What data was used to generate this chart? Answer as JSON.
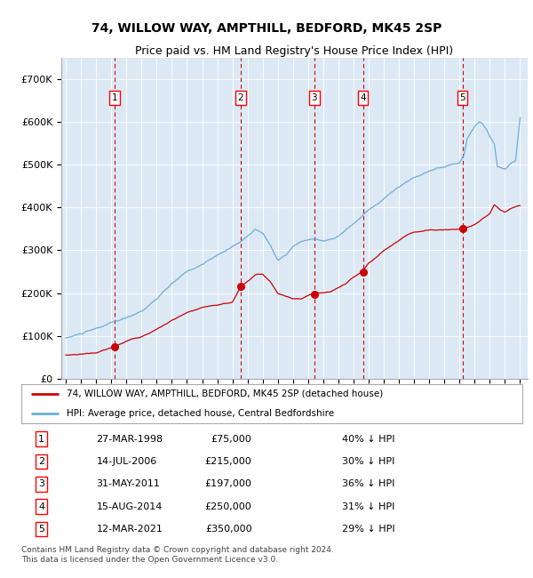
{
  "title": "74, WILLOW WAY, AMPTHILL, BEDFORD, MK45 2SP",
  "subtitle": "Price paid vs. HM Land Registry's House Price Index (HPI)",
  "ylim": [
    0,
    750000
  ],
  "yticks": [
    0,
    100000,
    200000,
    300000,
    400000,
    500000,
    600000,
    700000
  ],
  "ytick_labels": [
    "£0",
    "£100K",
    "£200K",
    "£300K",
    "£400K",
    "£500K",
    "£600K",
    "£700K"
  ],
  "background_color": "#dce9f5",
  "hpi_color": "#6baed6",
  "price_color": "#cc0000",
  "vline_color": "#cc0000",
  "legend_label_price": "74, WILLOW WAY, AMPTHILL, BEDFORD, MK45 2SP (detached house)",
  "legend_label_hpi": "HPI: Average price, detached house, Central Bedfordshire",
  "transactions": [
    {
      "num": 1,
      "date": "27-MAR-1998",
      "price": 75000,
      "year": 1998.23,
      "pct": "40%"
    },
    {
      "num": 2,
      "date": "14-JUL-2006",
      "price": 215000,
      "year": 2006.54,
      "pct": "30%"
    },
    {
      "num": 3,
      "date": "31-MAY-2011",
      "price": 197000,
      "year": 2011.41,
      "pct": "36%"
    },
    {
      "num": 4,
      "date": "15-AUG-2014",
      "price": 250000,
      "year": 2014.62,
      "pct": "31%"
    },
    {
      "num": 5,
      "date": "12-MAR-2021",
      "price": 350000,
      "year": 2021.19,
      "pct": "29%"
    }
  ],
  "table_rows": [
    [
      "1",
      "27-MAR-1998",
      "£75,000",
      "40% ↓ HPI"
    ],
    [
      "2",
      "14-JUL-2006",
      "£215,000",
      "30% ↓ HPI"
    ],
    [
      "3",
      "31-MAY-2011",
      "£197,000",
      "36% ↓ HPI"
    ],
    [
      "4",
      "15-AUG-2014",
      "£250,000",
      "31% ↓ HPI"
    ],
    [
      "5",
      "12-MAR-2021",
      "£350,000",
      "29% ↓ HPI"
    ]
  ],
  "footer": "Contains HM Land Registry data © Crown copyright and database right 2024.\nThis data is licensed under the Open Government Licence v3.0.",
  "xlim_start": 1994.7,
  "xlim_end": 2025.5
}
